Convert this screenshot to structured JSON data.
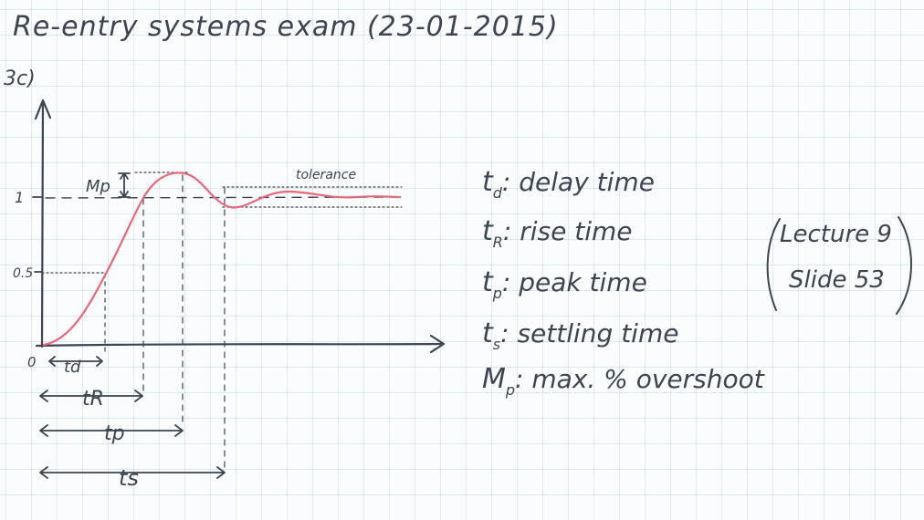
{
  "header": {
    "title": "Re-entry systems exam (23-01-2015)",
    "question": "3c)"
  },
  "diagram": {
    "y_ticks": [
      "1",
      "0.5"
    ],
    "origin_label": "0",
    "mp_label": "Mp",
    "tolerance_label": "tolerance",
    "interval_labels": [
      "td",
      "tR",
      "tp",
      "ts"
    ],
    "curve_color": "#e8687a",
    "ink_color": "#3d4452"
  },
  "legend": [
    {
      "symbol": "t",
      "sub": "d",
      "text": ": delay time"
    },
    {
      "symbol": "t",
      "sub": "R",
      "text": ": rise time"
    },
    {
      "symbol": "t",
      "sub": "p",
      "text": ": peak time"
    },
    {
      "symbol": "t",
      "sub": "s",
      "text": ": settling time"
    },
    {
      "symbol": "M",
      "sub": "p",
      "text": ": max. % overshoot"
    }
  ],
  "reference": {
    "line1": "Lecture 9",
    "line2": "Slide 53"
  }
}
